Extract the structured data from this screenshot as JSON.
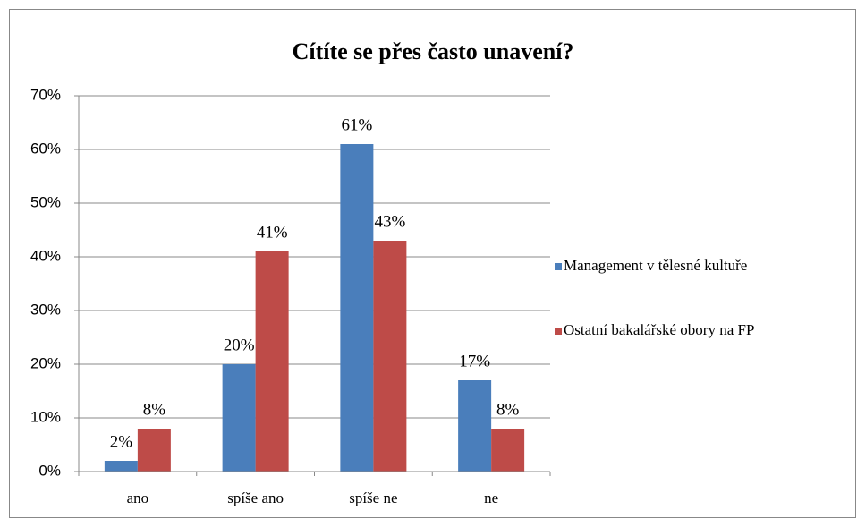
{
  "chart_data": {
    "type": "bar",
    "title": "Cítíte se přes často unavení?",
    "categories": [
      "ano",
      "spíše ano",
      "spíše ne",
      "ne"
    ],
    "series": [
      {
        "name": "Management v tělesné kultuře",
        "color": "#4a7ebb",
        "values": [
          2,
          20,
          61,
          17
        ],
        "value_labels": [
          "2%",
          "20%",
          "61%",
          "17%"
        ]
      },
      {
        "name": "Ostatní bakalářské obory na FP",
        "color": "#be4b48",
        "values": [
          8,
          41,
          43,
          8
        ],
        "value_labels": [
          "8%",
          "41%",
          "43%",
          "8%"
        ]
      }
    ],
    "ylim": [
      0,
      70
    ],
    "yticks": [
      {
        "value": 0,
        "label": "0%"
      },
      {
        "value": 10,
        "label": "10%"
      },
      {
        "value": 20,
        "label": "20%"
      },
      {
        "value": 30,
        "label": "30%"
      },
      {
        "value": 40,
        "label": "40%"
      },
      {
        "value": 50,
        "label": "50%"
      },
      {
        "value": 60,
        "label": "60%"
      },
      {
        "value": 70,
        "label": "70%"
      }
    ],
    "grid": true,
    "legend": "right"
  }
}
